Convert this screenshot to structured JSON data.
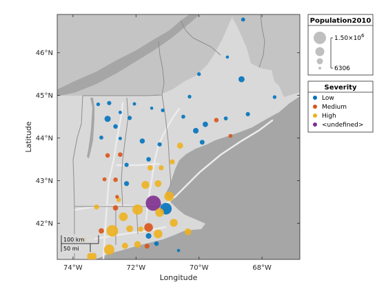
{
  "map": {
    "xlabel": "Longitude",
    "ylabel": "Latitude",
    "lon_range": [
      -74.5,
      -66.8
    ],
    "lat_range": [
      41.15,
      46.9
    ],
    "lon_ticks": [
      {
        "value": -74,
        "label": "74°W"
      },
      {
        "value": -72,
        "label": "72°W"
      },
      {
        "value": -70,
        "label": "70°W"
      },
      {
        "value": -68,
        "label": "68°W"
      }
    ],
    "lat_ticks": [
      {
        "value": 42,
        "label": "42°N"
      },
      {
        "value": 43,
        "label": "43°N"
      },
      {
        "value": 44,
        "label": "44°N"
      },
      {
        "value": 45,
        "label": "45°N"
      },
      {
        "value": 46,
        "label": "46°N"
      }
    ],
    "colors": {
      "land": "#d9d9d9",
      "land_north": "#c4c4c4",
      "ocean": "#a6a6a6",
      "border": "#8c8c8c",
      "road": "#ececec"
    },
    "scalebar": {
      "km_label": "100 km",
      "mi_label": "50 mi"
    }
  },
  "legend_population": {
    "title": "Population2010",
    "max_label": "1.50×10",
    "max_exp": "6",
    "min_label": "6306"
  },
  "legend_severity": {
    "title": "Severity",
    "items": [
      {
        "label": "Low",
        "color": "#0072bd"
      },
      {
        "label": "Medium",
        "color": "#d95319"
      },
      {
        "label": "High",
        "color": "#edb120"
      },
      {
        "label": "<undefined>",
        "color": "#7e2f8e"
      }
    ]
  },
  "chart_data": {
    "type": "scatter",
    "title": "",
    "xlabel": "Longitude",
    "ylabel": "Latitude",
    "xlim": [
      -74.5,
      -66.8
    ],
    "ylim": [
      41.15,
      46.9
    ],
    "size_variable": "Population2010",
    "size_range": [
      6306,
      1500000
    ],
    "color_variable": "Severity",
    "series": [
      {
        "name": "Low",
        "points": [
          {
            "lon": -68.6,
            "lat": 46.78,
            "pop": 40000
          },
          {
            "lon": -69.1,
            "lat": 45.9,
            "pop": 15000
          },
          {
            "lon": -70.0,
            "lat": 45.5,
            "pop": 30000
          },
          {
            "lon": -68.65,
            "lat": 45.38,
            "pop": 150000
          },
          {
            "lon": -72.9,
            "lat": 44.45,
            "pop": 160000
          },
          {
            "lon": -72.85,
            "lat": 44.82,
            "pop": 50000
          },
          {
            "lon": -73.2,
            "lat": 44.79,
            "pop": 30000
          },
          {
            "lon": -72.5,
            "lat": 44.6,
            "pop": 20000
          },
          {
            "lon": -72.05,
            "lat": 44.8,
            "pop": 20000
          },
          {
            "lon": -72.2,
            "lat": 44.47,
            "pop": 50000
          },
          {
            "lon": -71.5,
            "lat": 44.7,
            "pop": 15000
          },
          {
            "lon": -71.15,
            "lat": 44.65,
            "pop": 30000
          },
          {
            "lon": -70.3,
            "lat": 44.97,
            "pop": 30000
          },
          {
            "lon": -70.5,
            "lat": 44.5,
            "pop": 40000
          },
          {
            "lon": -69.8,
            "lat": 44.32,
            "pop": 100000
          },
          {
            "lon": -70.1,
            "lat": 44.17,
            "pop": 120000
          },
          {
            "lon": -69.15,
            "lat": 44.46,
            "pop": 40000
          },
          {
            "lon": -68.45,
            "lat": 44.56,
            "pop": 50000
          },
          {
            "lon": -67.6,
            "lat": 44.96,
            "pop": 30000
          },
          {
            "lon": -72.65,
            "lat": 44.27,
            "pop": 60000
          },
          {
            "lon": -73.1,
            "lat": 44.01,
            "pop": 40000
          },
          {
            "lon": -72.5,
            "lat": 43.99,
            "pop": 20000
          },
          {
            "lon": -71.8,
            "lat": 43.93,
            "pop": 90000
          },
          {
            "lon": -71.25,
            "lat": 43.85,
            "pop": 50000
          },
          {
            "lon": -69.9,
            "lat": 43.9,
            "pop": 70000
          },
          {
            "lon": -71.6,
            "lat": 43.5,
            "pop": 60000
          },
          {
            "lon": -72.3,
            "lat": 43.37,
            "pop": 50000
          },
          {
            "lon": -72.3,
            "lat": 42.93,
            "pop": 80000
          },
          {
            "lon": -71.05,
            "lat": 42.34,
            "pop": 800000
          },
          {
            "lon": -71.6,
            "lat": 41.7,
            "pop": 120000
          },
          {
            "lon": -71.35,
            "lat": 41.52,
            "pop": 60000
          },
          {
            "lon": -70.65,
            "lat": 41.36,
            "pop": 15000
          }
        ]
      },
      {
        "name": "Medium",
        "points": [
          {
            "lon": -69.45,
            "lat": 44.42,
            "pop": 60000
          },
          {
            "lon": -69.0,
            "lat": 44.05,
            "pop": 40000
          },
          {
            "lon": -72.9,
            "lat": 43.59,
            "pop": 60000
          },
          {
            "lon": -72.5,
            "lat": 43.61,
            "pop": 60000
          },
          {
            "lon": -73.0,
            "lat": 43.03,
            "pop": 40000
          },
          {
            "lon": -72.65,
            "lat": 43.02,
            "pop": 60000
          },
          {
            "lon": -72.6,
            "lat": 42.62,
            "pop": 30000
          },
          {
            "lon": -72.65,
            "lat": 42.36,
            "pop": 100000
          },
          {
            "lon": -71.6,
            "lat": 41.9,
            "pop": 400000
          },
          {
            "lon": -73.1,
            "lat": 41.82,
            "pop": 100000
          },
          {
            "lon": -71.65,
            "lat": 41.46,
            "pop": 80000
          }
        ]
      },
      {
        "name": "High",
        "points": [
          {
            "lon": -70.6,
            "lat": 43.82,
            "pop": 150000
          },
          {
            "lon": -71.2,
            "lat": 43.3,
            "pop": 80000
          },
          {
            "lon": -70.85,
            "lat": 43.44,
            "pop": 90000
          },
          {
            "lon": -71.55,
            "lat": 43.3,
            "pop": 100000
          },
          {
            "lon": -71.3,
            "lat": 42.93,
            "pop": 200000
          },
          {
            "lon": -71.7,
            "lat": 42.9,
            "pop": 300000
          },
          {
            "lon": -72.55,
            "lat": 42.55,
            "pop": 60000
          },
          {
            "lon": -70.95,
            "lat": 42.63,
            "pop": 500000
          },
          {
            "lon": -71.25,
            "lat": 42.25,
            "pop": 400000
          },
          {
            "lon": -71.95,
            "lat": 42.32,
            "pop": 600000
          },
          {
            "lon": -72.4,
            "lat": 42.15,
            "pop": 400000
          },
          {
            "lon": -73.25,
            "lat": 42.38,
            "pop": 80000
          },
          {
            "lon": -70.8,
            "lat": 42.01,
            "pop": 300000
          },
          {
            "lon": -71.3,
            "lat": 41.75,
            "pop": 400000
          },
          {
            "lon": -72.2,
            "lat": 41.87,
            "pop": 200000
          },
          {
            "lon": -71.85,
            "lat": 41.86,
            "pop": 100000
          },
          {
            "lon": -70.35,
            "lat": 41.8,
            "pop": 200000
          },
          {
            "lon": -72.75,
            "lat": 41.82,
            "pop": 800000
          },
          {
            "lon": -71.95,
            "lat": 41.5,
            "pop": 200000
          },
          {
            "lon": -72.35,
            "lat": 41.47,
            "pop": 150000
          },
          {
            "lon": -72.85,
            "lat": 41.38,
            "pop": 600000
          },
          {
            "lon": -73.4,
            "lat": 41.22,
            "pop": 500000
          },
          {
            "lon": -73.65,
            "lat": 41.62,
            "pop": 100000
          }
        ]
      },
      {
        "name": "<undefined>",
        "points": [
          {
            "lon": -71.45,
            "lat": 42.47,
            "pop": 1500000
          }
        ]
      }
    ]
  }
}
